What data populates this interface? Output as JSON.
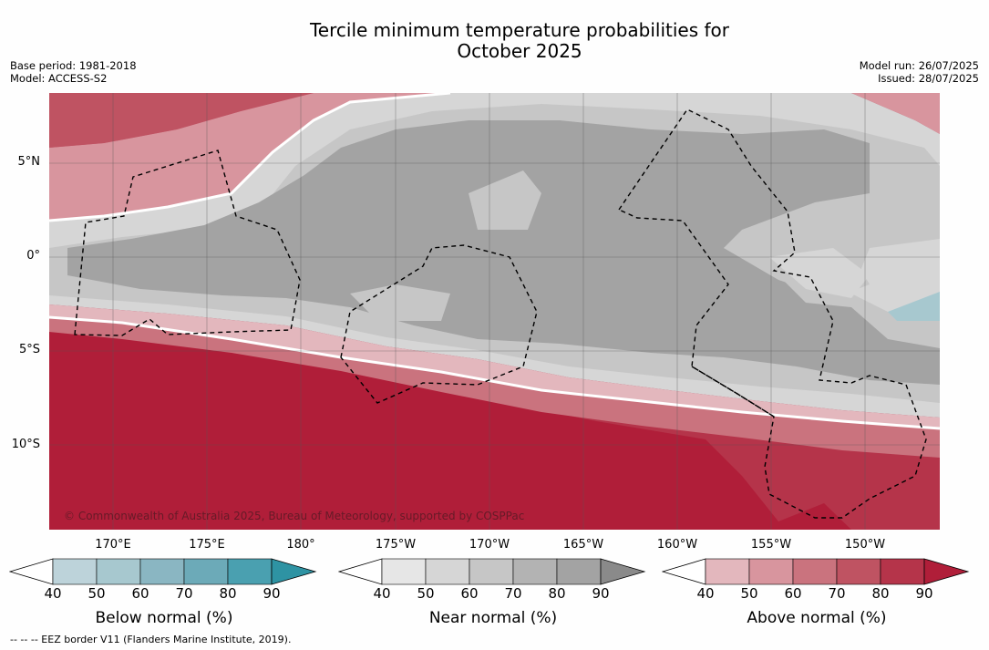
{
  "title_line1": "Tercile minimum temperature probabilities for",
  "title_line2": "October 2025",
  "base_period": "Base period: 1981-2018",
  "model": "Model: ACCESS-S2",
  "model_run": "Model run: 26/07/2025",
  "issued": "Issued: 28/07/2025",
  "lat_labels": [
    "5°N",
    "0°",
    "5°S",
    "10°S"
  ],
  "lon_labels": [
    "170°E",
    "175°E",
    "180°",
    "175°W",
    "170°W",
    "165°W",
    "160°W",
    "155°W",
    "150°W"
  ],
  "copyright": "© Commonwealth of Australia 2025, Bureau of Meteorology, supported by COSPPac",
  "colorbars": [
    {
      "title": "Below normal (%)",
      "ticks": [
        "40",
        "50",
        "60",
        "70",
        "80",
        "90"
      ],
      "colors": [
        "#bdd3da",
        "#a7c8cf",
        "#8ab6c2",
        "#6caab8",
        "#4aa0b0",
        "#2e93a3"
      ]
    },
    {
      "title": "Near normal (%)",
      "ticks": [
        "40",
        "50",
        "60",
        "70",
        "80",
        "90"
      ],
      "colors": [
        "#e6e6e6",
        "#d6d6d6",
        "#c6c6c6",
        "#b3b3b3",
        "#a3a3a3",
        "#8a8a8a"
      ]
    },
    {
      "title": "Above normal (%)",
      "ticks": [
        "40",
        "50",
        "60",
        "70",
        "80",
        "90"
      ],
      "colors": [
        "#e3b7bd",
        "#d8959e",
        "#ca737e",
        "#bf5362",
        "#b5344a",
        "#b01e39"
      ]
    }
  ],
  "footnote": "--  --  -- EEZ border V11 (Flanders Marine Institute, 2019)."
}
